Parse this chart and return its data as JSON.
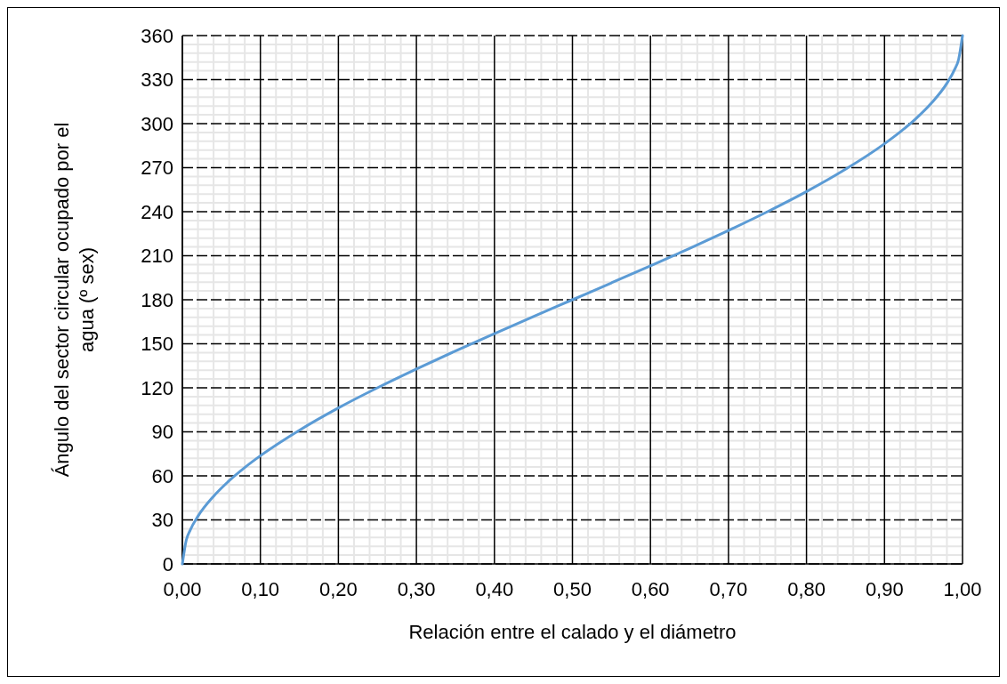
{
  "chart_data": {
    "type": "line",
    "xlabel": "Relación entre el calado y el diámetro",
    "ylabel": "Ángulo del sector circular ocupado por el agua (º sex)",
    "x": [
      0,
      0.005,
      0.01,
      0.02,
      0.04,
      0.06,
      0.08,
      0.1,
      0.15,
      0.2,
      0.25,
      0.3,
      0.35,
      0.4,
      0.45,
      0.5,
      0.55,
      0.6,
      0.65,
      0.7,
      0.75,
      0.8,
      0.85,
      0.9,
      0.92,
      0.94,
      0.96,
      0.98,
      0.99,
      0.995,
      1
    ],
    "series": [
      {
        "color": "#5b9bd5",
        "values": [
          0,
          16.2,
          23,
          32.5,
          46.1,
          56.7,
          65.7,
          73.7,
          91.1,
          106.3,
          120,
          132.8,
          145.1,
          156.9,
          168.5,
          180,
          191.5,
          203.1,
          214.9,
          227.2,
          240,
          253.7,
          268.9,
          286.3,
          294.3,
          303.3,
          313.9,
          327.5,
          337,
          343.8,
          360
        ]
      }
    ],
    "xlim": [
      0,
      1
    ],
    "xticks": [
      {
        "value": 0,
        "label": "0,00"
      },
      {
        "value": 0.1,
        "label": "0,10"
      },
      {
        "value": 0.2,
        "label": "0,20"
      },
      {
        "value": 0.3,
        "label": "0,30"
      },
      {
        "value": 0.4,
        "label": "0,40"
      },
      {
        "value": 0.5,
        "label": "0,50"
      },
      {
        "value": 0.6,
        "label": "0,60"
      },
      {
        "value": 0.7,
        "label": "0,70"
      },
      {
        "value": 0.8,
        "label": "0,80"
      },
      {
        "value": 0.9,
        "label": "0,90"
      },
      {
        "value": 1,
        "label": "1,00"
      }
    ],
    "ylim": [
      0,
      360
    ],
    "yticks": [
      0,
      30,
      60,
      90,
      120,
      150,
      180,
      210,
      240,
      270,
      300,
      330,
      360
    ],
    "grid": true,
    "marker": "none",
    "line_style": "solid"
  }
}
